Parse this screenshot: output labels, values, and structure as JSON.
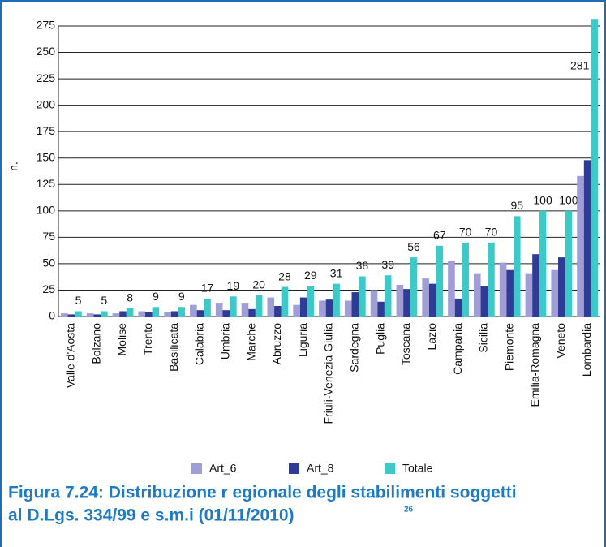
{
  "chart_data": {
    "type": "bar",
    "title": [
      "Figura 7.24: Distribuzione r egionale degli stabilimenti soggetti",
      "al D.Lgs. 334/99 e s.m.i (01/11/2010)"
    ],
    "footnote_ref": "26",
    "y_label": "n.",
    "categories": [
      "Valle d'Aosta",
      "Bolzano",
      "Molise",
      "Trento",
      "Basilicata",
      "Calabria",
      "Umbria",
      "Marche",
      "Abruzzo",
      "Liguria",
      "Friuli-Venezia Giulia",
      "Sardegna",
      "Puglia",
      "Toscana",
      "Lazio",
      "Campania",
      "Sicilia",
      "Piemonte",
      "Emilia-Romagna",
      "Veneto",
      "Lombardia"
    ],
    "series": [
      {
        "name": "Art_6",
        "color": "#9f9fd6",
        "values": [
          3,
          3,
          3,
          5,
          4,
          11,
          13,
          13,
          18,
          11,
          15,
          15,
          25,
          30,
          36,
          53,
          41,
          51,
          41,
          44,
          133
        ]
      },
      {
        "name": "Art_8",
        "color": "#303b96",
        "values": [
          2,
          2,
          5,
          4,
          5,
          6,
          6,
          7,
          10,
          18,
          16,
          23,
          14,
          26,
          31,
          17,
          29,
          44,
          59,
          56,
          148
        ]
      },
      {
        "name": "Totale",
        "color": "#3ec8c8",
        "values": [
          5,
          5,
          8,
          9,
          9,
          17,
          19,
          20,
          28,
          29,
          31,
          38,
          39,
          56,
          67,
          70,
          70,
          95,
          100,
          100,
          281
        ],
        "labeled": true
      }
    ],
    "ylim": [
      0,
      280
    ],
    "yticks": [
      0,
      25,
      50,
      75,
      100,
      125,
      150,
      175,
      200,
      225,
      250,
      275
    ],
    "grid": true
  }
}
